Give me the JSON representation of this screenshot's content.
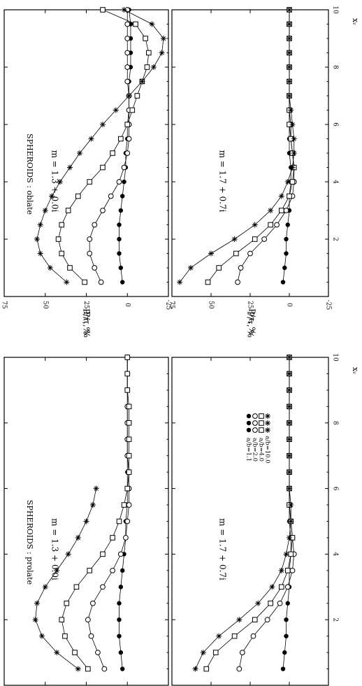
{
  "figure": {
    "ylabel": "P/τ, %",
    "xlabel": "xᵥ",
    "legend": [
      {
        "symbol": "filled-circle",
        "label": "a/b=1.1"
      },
      {
        "symbol": "open-circle",
        "label": "a/b=2.0"
      },
      {
        "symbol": "open-square",
        "label": "a/b=4.0"
      },
      {
        "symbol": "star",
        "label": "a/b=10.0"
      }
    ]
  },
  "chart_data": [
    {
      "type": "line",
      "title": "SPHEROIDS : prolate",
      "annotation": "m = 1.3 + 0.0i",
      "xlabel": "xᵥ",
      "ylabel": "P/τ, %",
      "xlim": [
        0,
        10
      ],
      "ylim": [
        -25,
        75
      ],
      "xticks": [
        2,
        4,
        6,
        8,
        10
      ],
      "yticks": [
        -25,
        0,
        25,
        50,
        75
      ],
      "xtick_labels": [
        "2",
        "4",
        "6",
        "8",
        "10"
      ],
      "ytick_labels": [
        "-25",
        "0",
        "25",
        "50",
        "75"
      ],
      "series": [
        {
          "name": "a/b=1.1",
          "marker": "filled-circle",
          "x": [
            0.5,
            1,
            1.5,
            2,
            2.5,
            3,
            3.5,
            4,
            4.5,
            5,
            5.5,
            6,
            6.5,
            7,
            7.5,
            8,
            8.5,
            9,
            9.5,
            10
          ],
          "y": [
            3,
            4,
            5,
            5,
            5,
            4,
            3,
            2,
            1,
            1,
            0,
            0,
            0,
            0,
            0,
            0,
            0,
            0,
            0,
            0
          ]
        },
        {
          "name": "a/b=2.0",
          "marker": "open-circle",
          "x": [
            0.5,
            1,
            1.5,
            2,
            2.5,
            3,
            3.5,
            4,
            4.5,
            5,
            5.5,
            6,
            6.5,
            7,
            7.5,
            8,
            8.5,
            9,
            9.5,
            10
          ],
          "y": [
            14,
            18,
            22,
            24,
            21,
            15,
            9,
            4,
            1,
            0,
            -1,
            -1,
            -1,
            0,
            0,
            0,
            0,
            0,
            0,
            0
          ]
        },
        {
          "name": "a/b=4.0",
          "marker": "open-square",
          "x": [
            0.5,
            1,
            1.5,
            2,
            2.5,
            3,
            3.5,
            4,
            4.5,
            5,
            5.5,
            6,
            6.5,
            7,
            7.5,
            8,
            8.5,
            9,
            9.5,
            10
          ],
          "y": [
            24,
            32,
            38,
            40,
            37,
            31,
            23,
            15,
            9,
            5,
            2,
            0,
            -1,
            -1,
            -1,
            -1,
            -1,
            0,
            0,
            0
          ]
        },
        {
          "name": "a/b=10.0",
          "marker": "star",
          "x": [
            0.5,
            1,
            1.5,
            2,
            2.5,
            3,
            3.5,
            4,
            4.5,
            5,
            5.5,
            6
          ],
          "y": [
            30,
            43,
            52,
            56,
            55,
            50,
            43,
            36,
            30,
            25,
            21,
            19
          ]
        }
      ]
    },
    {
      "type": "line",
      "title": "",
      "annotation": "m = 1.7 + 0.7i",
      "xlabel": "xᵥ",
      "ylabel": "P/τ, %",
      "xlim": [
        0,
        10
      ],
      "ylim": [
        -25,
        75
      ],
      "xticks": [
        2,
        4,
        6,
        8,
        10
      ],
      "yticks": [
        -25,
        0,
        25,
        50,
        75
      ],
      "xtick_labels": [
        "2",
        "4",
        "6",
        "8",
        "10"
      ],
      "ytick_labels": [
        "-25",
        "0",
        "25",
        "50",
        "75"
      ],
      "legend": "upper-right",
      "series": [
        {
          "name": "a/b=1.1",
          "marker": "filled-circle",
          "x": [
            0.5,
            1,
            1.5,
            2,
            2.5,
            3,
            3.5,
            4,
            4.5,
            5,
            5.5,
            6,
            6.5,
            7,
            7.5,
            8,
            8.5,
            9,
            9.5,
            10
          ],
          "y": [
            4,
            3,
            2,
            2,
            1,
            0,
            0,
            -1,
            -1,
            0,
            0,
            0,
            0,
            0,
            0,
            0,
            0,
            0,
            0,
            0
          ]
        },
        {
          "name": "a/b=2.0",
          "marker": "open-circle",
          "x": [
            0.5,
            1,
            1.5,
            2,
            2.5,
            3,
            3.5,
            4,
            4.5,
            5,
            5.5,
            6,
            6.5,
            7,
            7.5,
            8,
            8.5,
            9,
            9.5,
            10
          ],
          "y": [
            32,
            30,
            23,
            14,
            6,
            1,
            -2,
            -3,
            -2,
            -1,
            0,
            0,
            0,
            0,
            0,
            0,
            0,
            0,
            0,
            0
          ]
        },
        {
          "name": "a/b=4.0",
          "marker": "open-square",
          "x": [
            0.5,
            1,
            1.5,
            2,
            2.5,
            3,
            3.5,
            4,
            4.5,
            5,
            5.5,
            6,
            6.5,
            7,
            7.5,
            8,
            8.5,
            9,
            9.5,
            10
          ],
          "y": [
            53,
            47,
            35,
            22,
            12,
            5,
            1,
            -1,
            -2,
            -1,
            0,
            0,
            0,
            0,
            0,
            0,
            0,
            0,
            0,
            0
          ]
        },
        {
          "name": "a/b=10.0",
          "marker": "star",
          "x": [
            0.5,
            1,
            1.5,
            2,
            2.5,
            3,
            3.5,
            4,
            4.5,
            5,
            5.5,
            6,
            6.5,
            7,
            7.5,
            8,
            8.5,
            9,
            9.5,
            10
          ],
          "y": [
            60,
            55,
            45,
            32,
            20,
            11,
            5,
            2,
            0,
            -1,
            -1,
            0,
            0,
            0,
            0,
            0,
            0,
            0,
            0,
            0
          ]
        }
      ]
    },
    {
      "type": "line",
      "title": "SPHEROIDS : oblate",
      "annotation": "m = 1.3 + 0.0i",
      "xlabel": "xᵥ",
      "ylabel": "P/τ, %",
      "xlim": [
        0,
        10
      ],
      "ylim": [
        -25,
        75
      ],
      "xticks": [
        2,
        4,
        6,
        8,
        10
      ],
      "yticks": [
        -25,
        0,
        25,
        50,
        75
      ],
      "xtick_labels": [
        "2",
        "4",
        "6",
        "8",
        "10"
      ],
      "ytick_labels": [
        "-25",
        "0",
        "25",
        "50",
        "75"
      ],
      "series": [
        {
          "name": "a/b=1.1",
          "marker": "filled-circle",
          "x": [
            0.5,
            1,
            1.5,
            2,
            2.5,
            3,
            3.5,
            4,
            4.5,
            5,
            5.5,
            6,
            6.5,
            7,
            7.5,
            8,
            8.5,
            9,
            9.5,
            10
          ],
          "y": [
            3,
            4,
            5,
            5,
            5,
            4,
            3,
            2,
            1,
            1,
            0,
            0,
            -1,
            -1,
            -1,
            -2,
            -2,
            -2,
            -2,
            -1
          ]
        },
        {
          "name": "a/b=2.0",
          "marker": "open-circle",
          "x": [
            0.5,
            1,
            1.5,
            2,
            2.5,
            3,
            3.5,
            4,
            4.5,
            5,
            5.5,
            6,
            6.5,
            7,
            7.5,
            8,
            8.5,
            9,
            9.5,
            10
          ],
          "y": [
            16,
            20,
            23,
            23,
            20,
            15,
            10,
            5,
            2,
            0,
            -1,
            -1,
            -1,
            -1,
            0,
            0,
            0,
            0,
            0,
            0
          ]
        },
        {
          "name": "a/b=4.0",
          "marker": "open-square",
          "x": [
            0.5,
            1,
            1.5,
            2,
            2.5,
            3,
            3.5,
            4,
            4.5,
            5,
            5.5,
            6,
            6.5,
            7,
            7.5,
            8,
            8.5,
            9,
            9.5,
            10
          ],
          "y": [
            26,
            35,
            40,
            42,
            40,
            36,
            30,
            23,
            15,
            9,
            4,
            0,
            -3,
            -6,
            -9,
            -12,
            -13,
            -11,
            -5,
            15
          ]
        },
        {
          "name": "a/b=10.0",
          "marker": "star",
          "x": [
            0.5,
            1,
            1.5,
            2,
            2.5,
            3,
            3.5,
            4,
            4.5,
            5,
            5.5,
            6,
            6.5,
            7,
            7.5,
            8,
            8.5,
            9,
            9.5,
            10
          ],
          "y": [
            37,
            47,
            53,
            55,
            53,
            50,
            46,
            41,
            35,
            29,
            22,
            15,
            7,
            -1,
            -9,
            -16,
            -21,
            -22,
            -15,
            2
          ]
        }
      ]
    },
    {
      "type": "line",
      "title": "",
      "annotation": "m = 1.7 + 0.7i",
      "xlabel": "xᵥ",
      "ylabel": "P/τ, %",
      "xlim": [
        0,
        10
      ],
      "ylim": [
        -25,
        75
      ],
      "xticks": [
        2,
        4,
        6,
        8,
        10
      ],
      "yticks": [
        -25,
        0,
        25,
        50,
        75
      ],
      "xtick_labels": [
        "2",
        "4",
        "6",
        "8",
        "10"
      ],
      "ytick_labels": [
        "-25",
        "0",
        "25",
        "50",
        "75"
      ],
      "series": [
        {
          "name": "a/b=1.1",
          "marker": "filled-circle",
          "x": [
            0.5,
            1,
            1.5,
            2,
            2.5,
            3,
            3.5,
            4,
            4.5,
            5,
            5.5,
            6,
            6.5,
            7,
            7.5,
            8,
            8.5,
            9,
            9.5,
            10
          ],
          "y": [
            4,
            3,
            2,
            2,
            1,
            0,
            0,
            -1,
            -1,
            0,
            0,
            0,
            0,
            0,
            0,
            0,
            0,
            0,
            0,
            0
          ]
        },
        {
          "name": "a/b=2.0",
          "marker": "open-circle",
          "x": [
            0.5,
            1,
            1.5,
            2,
            2.5,
            3,
            3.5,
            4,
            4.5,
            5,
            5.5,
            6,
            6.5,
            7,
            7.5,
            8,
            8.5,
            9,
            9.5,
            10
          ],
          "y": [
            33,
            31,
            25,
            16,
            8,
            2,
            -2,
            -3,
            -3,
            -2,
            -1,
            -1,
            0,
            0,
            0,
            0,
            0,
            0,
            0,
            0
          ]
        },
        {
          "name": "a/b=4.0",
          "marker": "open-square",
          "x": [
            0.5,
            1,
            1.5,
            2,
            2.5,
            3,
            3.5,
            4,
            4.5,
            5,
            5.5,
            6,
            6.5,
            7,
            7.5,
            8,
            8.5,
            9,
            9.5,
            10
          ],
          "y": [
            52,
            45,
            34,
            22,
            12,
            5,
            0,
            -2,
            -3,
            -2,
            -1,
            0,
            0,
            0,
            0,
            0,
            0,
            0,
            0,
            0
          ]
        },
        {
          "name": "a/b=10.0",
          "marker": "star",
          "x": [
            0.5,
            1,
            1.5,
            2,
            2.5,
            3,
            3.5,
            4,
            4.5,
            5,
            5.5,
            6,
            6.5,
            7,
            7.5,
            8,
            8.5,
            9,
            9.5,
            10
          ],
          "y": [
            70,
            63,
            50,
            35,
            22,
            12,
            5,
            1,
            -2,
            -3,
            -3,
            -2,
            -1,
            0,
            0,
            0,
            0,
            0,
            0,
            0
          ]
        }
      ]
    }
  ]
}
